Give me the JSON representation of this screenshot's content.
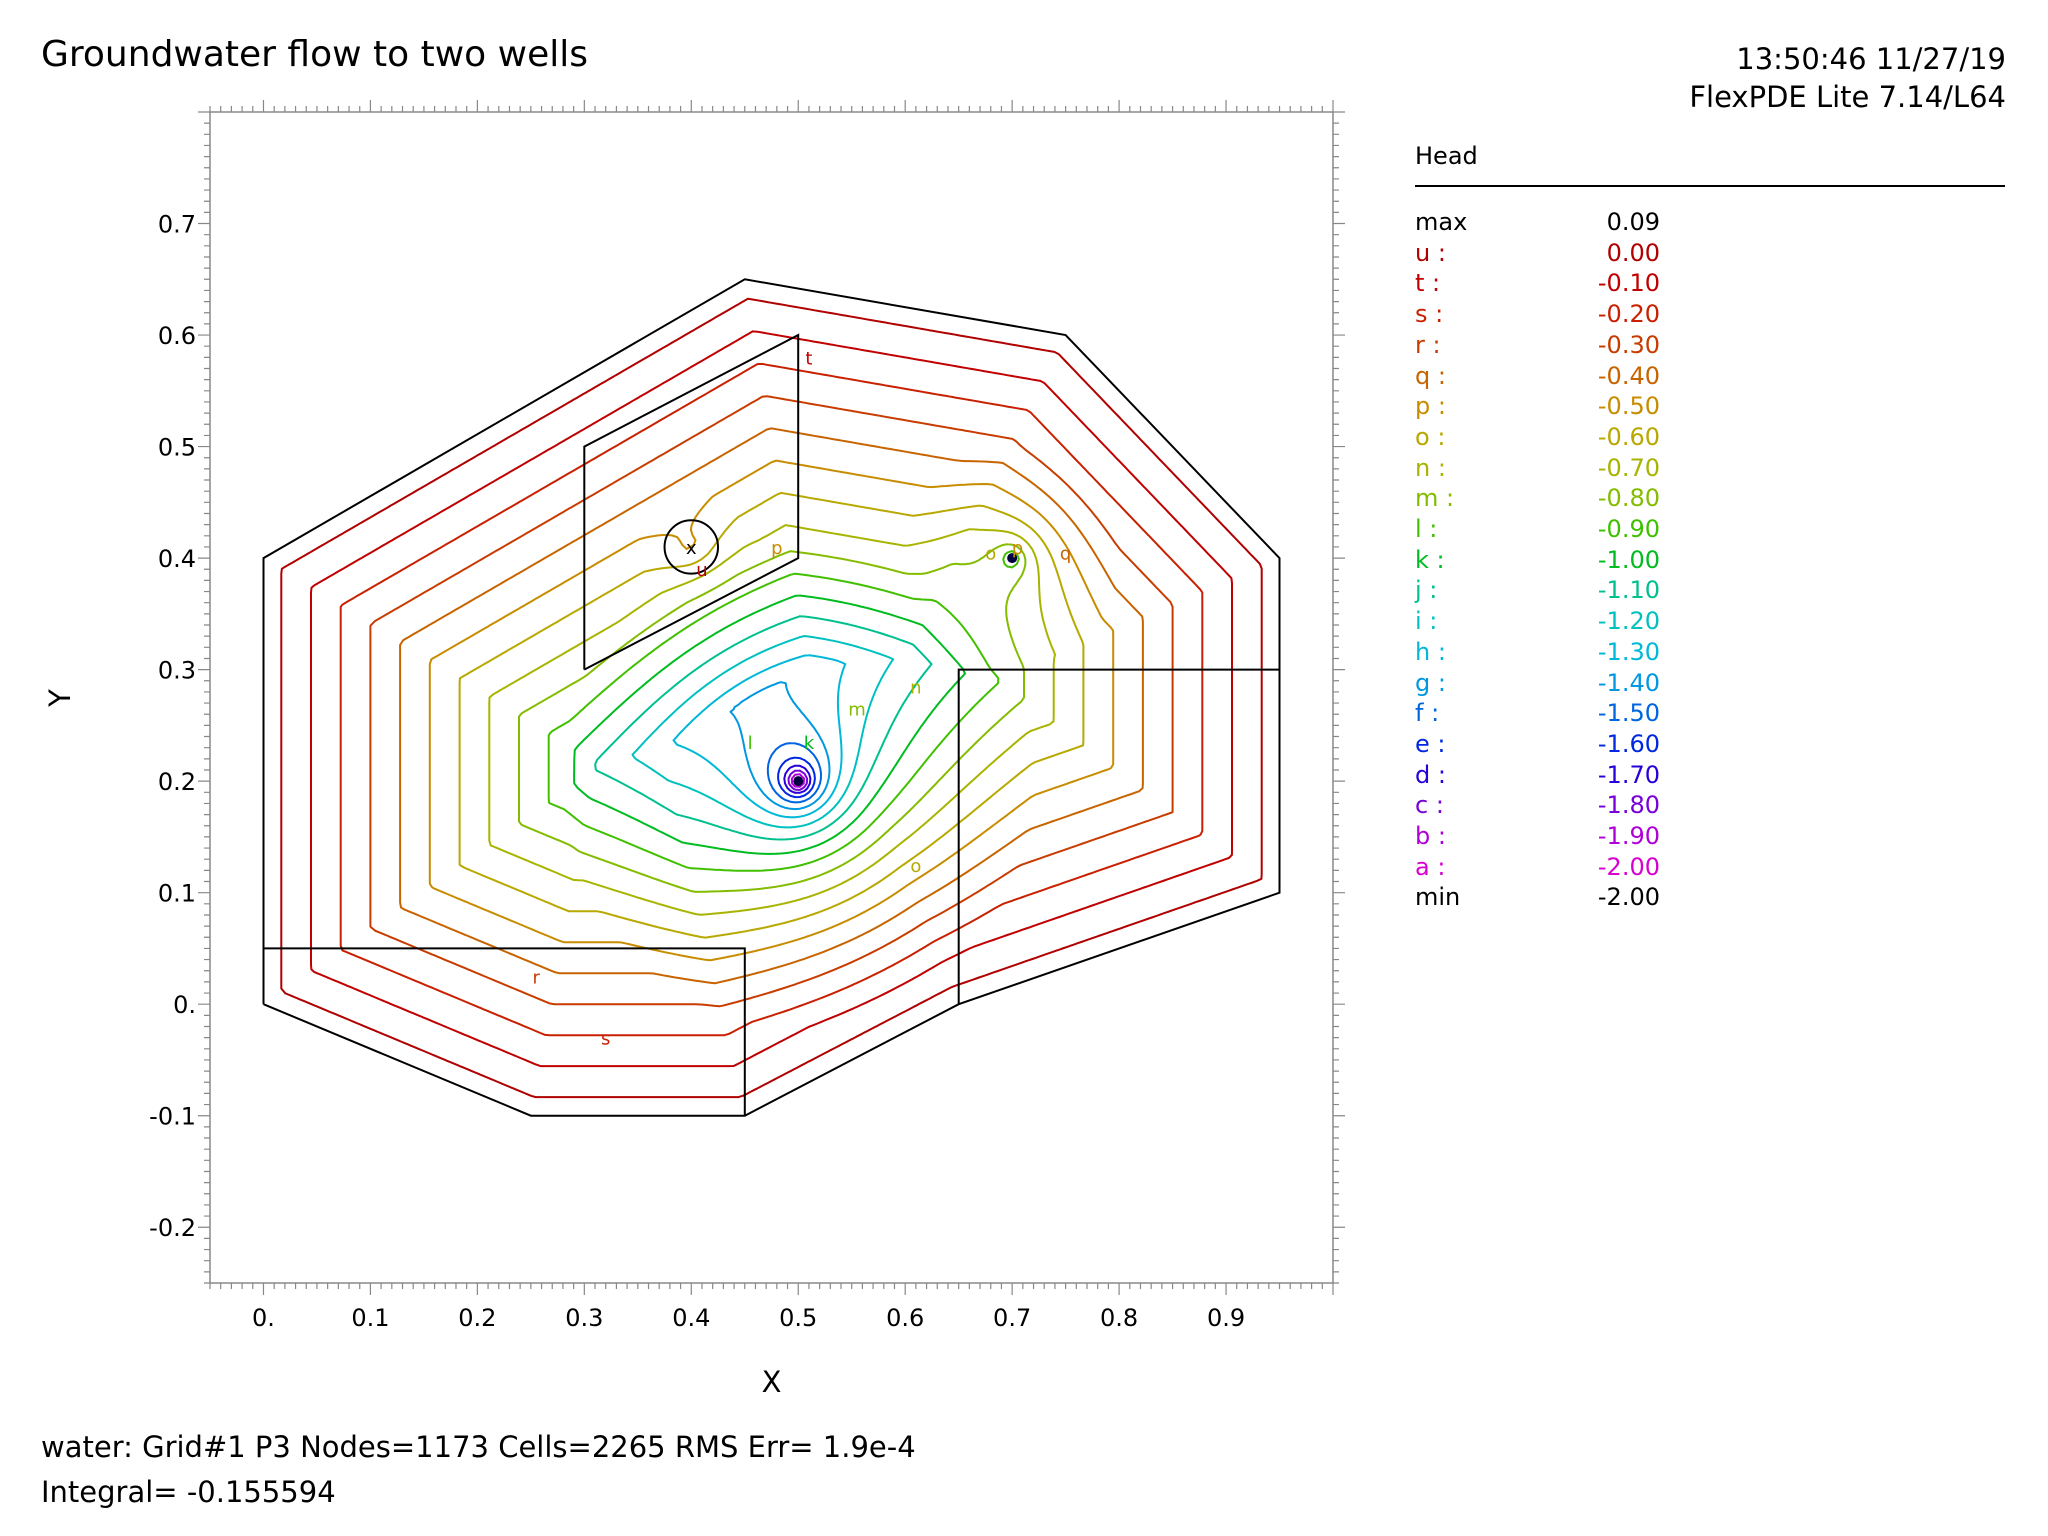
{
  "header": {
    "title": "Groundwater flow to two wells",
    "timestamp": "13:50:46 11/27/19",
    "software": "FlexPDE Lite 7.14/L64"
  },
  "footer": {
    "line1": "water:  Grid#1  P3  Nodes=1173 Cells=2265 RMS Err= 1.9e-4",
    "line2": "Integral= -0.155594"
  },
  "legend": {
    "title": "Head",
    "entries": [
      {
        "label": "max",
        "value": "0.09",
        "color": "#000000"
      },
      {
        "label": "u :",
        "value": "0.00",
        "color": "#b00000"
      },
      {
        "label": "t :",
        "value": "-0.10",
        "color": "#c00000"
      },
      {
        "label": "s :",
        "value": "-0.20",
        "color": "#c82000"
      },
      {
        "label": "r :",
        "value": "-0.30",
        "color": "#c83c00"
      },
      {
        "label": "q :",
        "value": "-0.40",
        "color": "#c86400"
      },
      {
        "label": "p :",
        "value": "-0.50",
        "color": "#c88c00"
      },
      {
        "label": "o :",
        "value": "-0.60",
        "color": "#b8a800"
      },
      {
        "label": "n :",
        "value": "-0.70",
        "color": "#a8b400"
      },
      {
        "label": "m :",
        "value": "-0.80",
        "color": "#84bc00"
      },
      {
        "label": "l :",
        "value": "-0.90",
        "color": "#40c000"
      },
      {
        "label": "k :",
        "value": "-1.00",
        "color": "#00bc20"
      },
      {
        "label": "j :",
        "value": "-1.10",
        "color": "#00c090"
      },
      {
        "label": "i :",
        "value": "-1.20",
        "color": "#00c0c0"
      },
      {
        "label": "h :",
        "value": "-1.30",
        "color": "#00b8d8"
      },
      {
        "label": "g :",
        "value": "-1.40",
        "color": "#0098e0"
      },
      {
        "label": "f :",
        "value": "-1.50",
        "color": "#0064e0"
      },
      {
        "label": "e :",
        "value": "-1.60",
        "color": "#0028e0"
      },
      {
        "label": "d :",
        "value": "-1.70",
        "color": "#2800d8"
      },
      {
        "label": "c :",
        "value": "-1.80",
        "color": "#7800d8"
      },
      {
        "label": "b :",
        "value": "-1.90",
        "color": "#b000d8"
      },
      {
        "label": "a :",
        "value": "-2.00",
        "color": "#d800d0"
      },
      {
        "label": "min",
        "value": "-2.00",
        "color": "#000000"
      }
    ]
  },
  "chart_data": {
    "type": "contour",
    "field": "Head",
    "xlabel": "X",
    "ylabel": "Y",
    "xlim": [
      -0.05,
      1.0
    ],
    "ylim": [
      -0.25,
      0.8
    ],
    "xticks": [
      0.0,
      0.1,
      0.2,
      0.3,
      0.4,
      0.5,
      0.6,
      0.7,
      0.8,
      0.9
    ],
    "xtick_labels": [
      "0.",
      "0.1",
      "0.2",
      "0.3",
      "0.4",
      "0.5",
      "0.6",
      "0.7",
      "0.8",
      "0.9"
    ],
    "yticks": [
      -0.2,
      -0.1,
      0.0,
      0.1,
      0.2,
      0.3,
      0.4,
      0.5,
      0.6,
      0.7
    ],
    "ytick_labels": [
      "-0.2",
      "-0.1",
      "0.",
      "0.1",
      "0.2",
      "0.3",
      "0.4",
      "0.5",
      "0.6",
      "0.7"
    ],
    "domain_boundary": [
      [
        0.0,
        0.0
      ],
      [
        0.0,
        0.4
      ],
      [
        0.45,
        0.65
      ],
      [
        0.75,
        0.6
      ],
      [
        0.95,
        0.4
      ],
      [
        0.95,
        0.1
      ],
      [
        0.65,
        0.0
      ],
      [
        0.45,
        -0.1
      ],
      [
        0.25,
        -0.1
      ],
      [
        0.0,
        0.0
      ]
    ],
    "region_lines": [
      [
        [
          0.0,
          0.05
        ],
        [
          0.45,
          0.05
        ],
        [
          0.45,
          -0.1
        ]
      ],
      [
        [
          0.65,
          0.0
        ],
        [
          0.65,
          0.3
        ],
        [
          0.95,
          0.3
        ]
      ],
      [
        [
          0.3,
          0.3
        ],
        [
          0.3,
          0.5
        ],
        [
          0.5,
          0.6
        ],
        [
          0.5,
          0.4
        ],
        [
          0.3,
          0.3
        ]
      ]
    ],
    "wells": [
      {
        "x": 0.5,
        "y": 0.2,
        "strength": "sink"
      },
      {
        "x": 0.7,
        "y": 0.4,
        "strength": "sink"
      }
    ],
    "source_marker": {
      "x": 0.4,
      "y": 0.41,
      "label": "x",
      "radius": 0.025
    },
    "contour_levels": [
      0.0,
      -0.1,
      -0.2,
      -0.3,
      -0.4,
      -0.5,
      -0.6,
      -0.7,
      -0.8,
      -0.9,
      -1.0,
      -1.1,
      -1.2,
      -1.3,
      -1.4,
      -1.5,
      -1.6,
      -1.7,
      -1.8,
      -1.9,
      -2.0
    ],
    "contour_labels": [
      {
        "text": "t",
        "x": 0.51,
        "y": 0.58,
        "level": -0.1
      },
      {
        "text": "u",
        "x": 0.41,
        "y": 0.39,
        "level": 0.0
      },
      {
        "text": "r",
        "x": 0.255,
        "y": 0.025,
        "level": -0.3
      },
      {
        "text": "s",
        "x": 0.32,
        "y": -0.03,
        "level": -0.2
      },
      {
        "text": "p",
        "x": 0.48,
        "y": 0.41,
        "level": -0.5
      },
      {
        "text": "q",
        "x": 0.75,
        "y": 0.405,
        "level": -0.4
      },
      {
        "text": "o",
        "x": 0.68,
        "y": 0.405,
        "level": -0.6
      },
      {
        "text": "p",
        "x": 0.705,
        "y": 0.41,
        "level": -0.5
      },
      {
        "text": "n",
        "x": 0.61,
        "y": 0.285,
        "level": -0.7
      },
      {
        "text": "m",
        "x": 0.555,
        "y": 0.265,
        "level": -0.8
      },
      {
        "text": "l",
        "x": 0.455,
        "y": 0.235,
        "level": -0.9
      },
      {
        "text": "k",
        "x": 0.51,
        "y": 0.235,
        "level": -1.0
      },
      {
        "text": "o",
        "x": 0.61,
        "y": 0.125,
        "level": -0.6
      }
    ]
  }
}
